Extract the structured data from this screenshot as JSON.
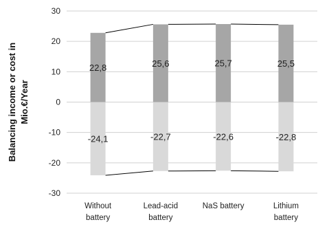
{
  "chart_data": {
    "type": "bar",
    "stacked": true,
    "categories": [
      [
        "Without",
        "battery"
      ],
      [
        "Lead-acid",
        "battery"
      ],
      [
        "NaS battery"
      ],
      [
        "Lithium",
        "battery"
      ]
    ],
    "series": [
      {
        "name": "",
        "values": [
          22.8,
          25.6,
          25.7,
          25.5
        ],
        "color": "#a6a6a6"
      },
      {
        "name": "",
        "values": [
          -24.1,
          -22.7,
          -22.6,
          -22.8
        ],
        "color": "#d9d9d9"
      }
    ],
    "data_labels": [
      [
        "22,8",
        "25,6",
        "25,7",
        "25,5"
      ],
      [
        "-24,1",
        "-22,7",
        "-22,6",
        "-22,8"
      ]
    ],
    "ylabel": [
      "Balancing income or cost in",
      "Mio.€/Year"
    ],
    "ylim": [
      -30,
      30
    ],
    "yticks": [
      30,
      20,
      10,
      0,
      -10,
      -20,
      -30
    ],
    "grid": true,
    "connector_lines": true,
    "legend": "none"
  }
}
